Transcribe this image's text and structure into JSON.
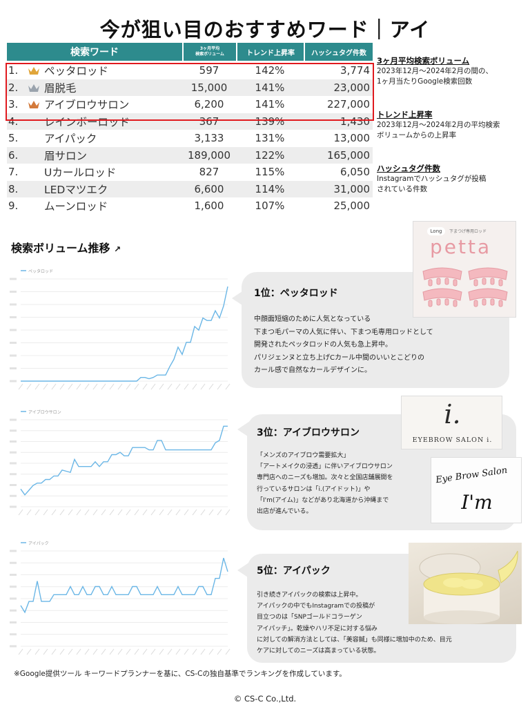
{
  "title": "今が狙い目のおすすめワード｜アイ",
  "table": {
    "headers": {
      "word": "検索ワード",
      "avg_line1": "3ヶ月平均",
      "avg_line2": "検索ボリューム",
      "trend": "トレンド上昇率",
      "tags": "ハッシュタグ件数"
    },
    "rows": [
      {
        "rank": "1.",
        "name": "ペッタロッド",
        "avg": "597",
        "trend": "142%",
        "tags": "3,774",
        "crown": "gold"
      },
      {
        "rank": "2.",
        "name": "眉脱毛",
        "avg": "15,000",
        "trend": "141%",
        "tags": "23,000",
        "crown": "silver"
      },
      {
        "rank": "3.",
        "name": "アイブロウサロン",
        "avg": "6,200",
        "trend": "141%",
        "tags": "227,000",
        "crown": "bronze"
      },
      {
        "rank": "4.",
        "name": "レインボーロッド",
        "avg": "367",
        "trend": "139%",
        "tags": "1,430"
      },
      {
        "rank": "5.",
        "name": "アイパック",
        "avg": "3,133",
        "trend": "131%",
        "tags": "13,000"
      },
      {
        "rank": "6.",
        "name": "眉サロン",
        "avg": "189,000",
        "trend": "122%",
        "tags": "165,000"
      },
      {
        "rank": "7.",
        "name": "Uカールロッド",
        "avg": "827",
        "trend": "115%",
        "tags": "6,050"
      },
      {
        "rank": "8.",
        "name": "LEDマツエク",
        "avg": "6,600",
        "trend": "114%",
        "tags": "31,000"
      },
      {
        "rank": "9.",
        "name": "ムーンロッド",
        "avg": "1,600",
        "trend": "107%",
        "tags": "25,000"
      }
    ]
  },
  "notes": [
    {
      "heading": "3ヶ月平均検索ボリューム",
      "lines": [
        "2023年12月～2024年2月の間の、",
        "1ヶ月当たりGoogle検索回数"
      ]
    },
    {
      "heading": "トレンド上昇率",
      "lines": [
        "2023年12月～2024年2月の平均検索",
        "ボリュームからの上昇率"
      ]
    },
    {
      "heading": "ハッシュタグ件数",
      "lines": [
        "Instagramでハッシュタグが投稿",
        "されている件数"
      ]
    }
  ],
  "section_title": "検索ボリューム推移",
  "callouts": [
    {
      "heading": "1位：ペッタロッド",
      "lines": [
        "中顔面短縮のために人気となっている",
        "下まつ毛パーマの人気に伴い、下まつ毛専用ロッドとして",
        "開発されたペッタロッドの人気も急上昇中。",
        "パリジェンヌと立ち上げCカール中間のいいとこどりの",
        "カール感で自然なカールデザインに。"
      ]
    },
    {
      "heading": "3位：アイブロウサロン",
      "lines": [
        "「メンズのアイブロウ需要拡大」",
        "「アートメイクの浸透」に伴いアイブロウサロン",
        "専門店へのニーズも増加。次々と全国店舗展開を",
        "行っているサロンは「i.(アイドット)」や",
        "「I'm(アイム)」などがあり北海道から沖縄まで",
        "出店が進んでいる。"
      ]
    },
    {
      "heading": "5位：アイパック",
      "lines": [
        "引き続きアイパックの検索は上昇中。",
        "アイパックの中でもInstagramでの投稿が",
        "目立つのは「SNPゴールドコラーゲン",
        "アイパッチ」。乾燥やハリ不足に対する悩み",
        "に対しての解消方法としては、「美容鍼」も同様に増加中のため、目元",
        "ケアに対してのニーズは高まっている状態。"
      ]
    }
  ],
  "products": {
    "petta_tag": "Long",
    "petta_sub": "下まつげ専用ロッド",
    "petta_name": "petta",
    "salon1_mark": "i.",
    "salon1_name": "EYEBROW SALON i.",
    "salon2_script": "Eye Brow Salon",
    "salon2_name": "I'm"
  },
  "chart_data": [
    {
      "type": "line",
      "legend": "ペッタロッド",
      "color": "#6ab6e6",
      "values": [
        0,
        0,
        0,
        0,
        0,
        0,
        0,
        0,
        0,
        0,
        0,
        0,
        0,
        0,
        0,
        0,
        0,
        0,
        0,
        0,
        0,
        0,
        0,
        0,
        0,
        0,
        0,
        0,
        0,
        3,
        3,
        2,
        3,
        5,
        5,
        5,
        12,
        18,
        28,
        22,
        32,
        32,
        45,
        42,
        52,
        50,
        50,
        58,
        52,
        62,
        78
      ]
    },
    {
      "type": "line",
      "legend": "アイブロウサロン",
      "color": "#6ab6e6",
      "values": [
        15,
        10,
        14,
        18,
        20,
        20,
        23,
        23,
        26,
        26,
        31,
        30,
        29,
        40,
        34,
        34,
        34,
        34,
        38,
        34,
        38,
        38,
        44,
        44,
        46,
        43,
        43,
        50,
        50,
        50,
        50,
        48,
        48,
        56,
        56,
        48,
        48,
        48,
        48,
        48,
        48,
        48,
        48,
        48,
        48,
        48,
        48,
        54,
        56,
        68,
        68
      ]
    },
    {
      "type": "line",
      "legend": "アイパック",
      "color": "#6ab6e6",
      "values": [
        30,
        25,
        33,
        33,
        48,
        33,
        33,
        33,
        38,
        38,
        38,
        38,
        44,
        38,
        38,
        44,
        38,
        38,
        44,
        44,
        38,
        38,
        44,
        38,
        38,
        38,
        38,
        44,
        44,
        38,
        38,
        38,
        38,
        44,
        38,
        38,
        38,
        38,
        44,
        38,
        38,
        38,
        38,
        44,
        44,
        38,
        38,
        50,
        50,
        65,
        55
      ]
    }
  ],
  "footnote": "※Google提供ツール キーワードプランナーを基に、CS-Cの独自基準でランキングを作成しています。",
  "copyright": "© CS-C Co.,Ltd."
}
